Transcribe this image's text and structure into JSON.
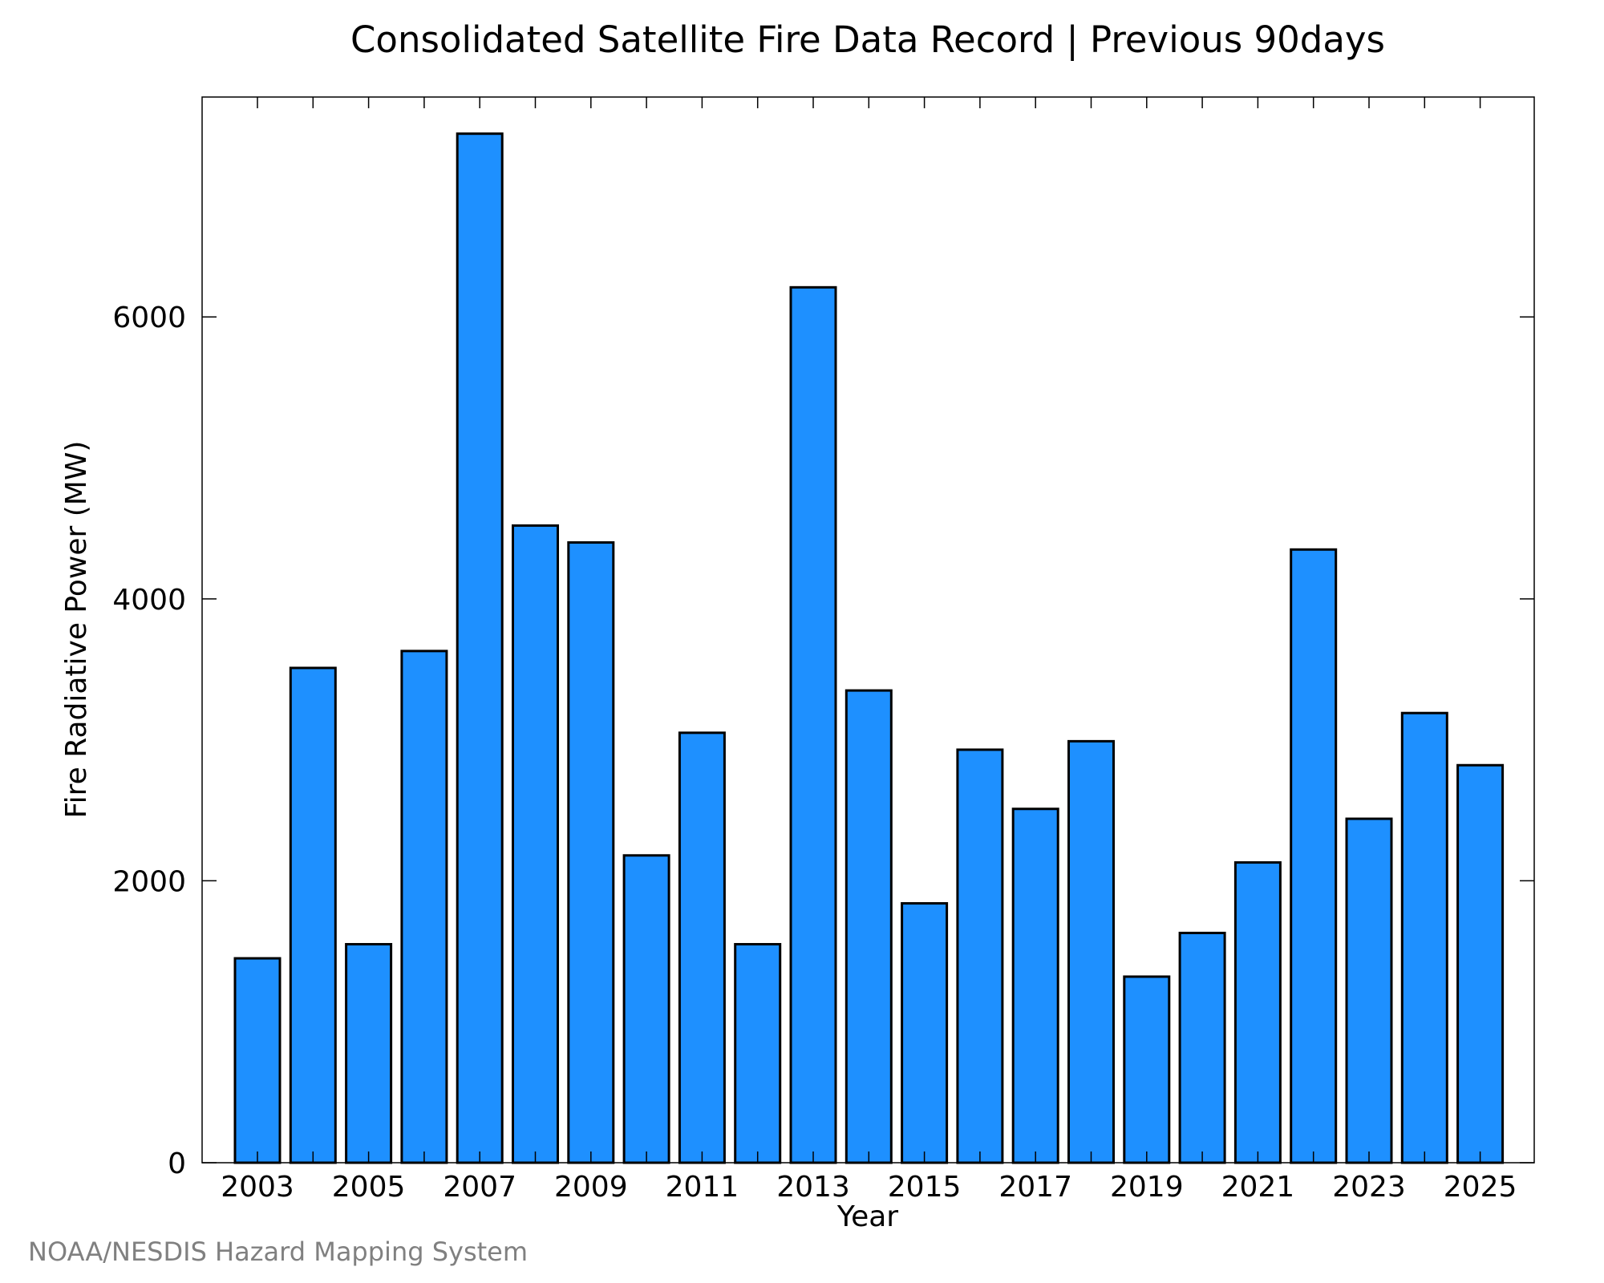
{
  "footer": {
    "credit": "NOAA/NESDIS Hazard Mapping System"
  },
  "chart_data": {
    "type": "bar",
    "title": "Consolidated Satellite Fire Data Record | Previous 90days",
    "xlabel": "Year",
    "ylabel": "Fire Radiative Power (MW)",
    "categories": [
      "2003",
      "2004",
      "2005",
      "2006",
      "2007",
      "2008",
      "2009",
      "2010",
      "2011",
      "2012",
      "2013",
      "2014",
      "2015",
      "2016",
      "2017",
      "2018",
      "2019",
      "2020",
      "2021",
      "2022",
      "2023",
      "2024",
      "2025"
    ],
    "values": [
      1450,
      3510,
      1550,
      3630,
      7300,
      4520,
      4400,
      2180,
      3050,
      1550,
      6210,
      3350,
      1840,
      2930,
      2510,
      2990,
      1320,
      1630,
      2130,
      4350,
      2440,
      3190,
      2820
    ],
    "ylim": [
      0,
      7560
    ],
    "yticks": [
      0,
      2000,
      4000,
      6000
    ],
    "xtick_labels": [
      "2003",
      "2005",
      "2007",
      "2009",
      "2011",
      "2013",
      "2015",
      "2017",
      "2019",
      "2021",
      "2023",
      "2025"
    ],
    "bar_color": "#1e90ff",
    "grid": false,
    "legend": "none"
  }
}
